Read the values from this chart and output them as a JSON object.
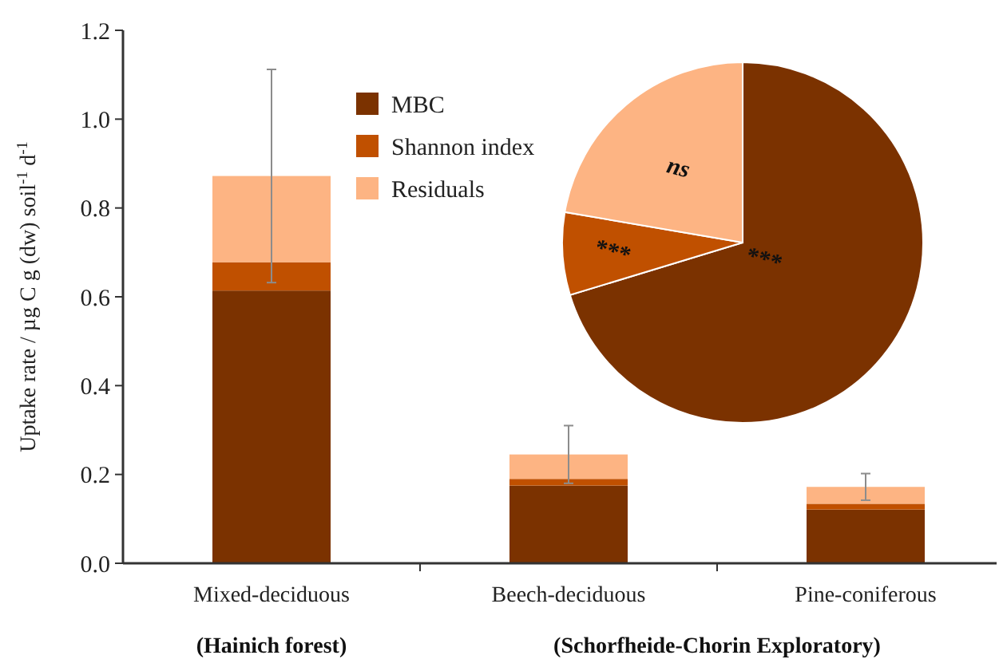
{
  "chart_data": [
    {
      "type": "bar",
      "stacked": true,
      "ylabel": "Uptake rate / µg C g (dw) soil$^{-1}$ d$^{-1}$",
      "categories": [
        "Mixed-deciduous",
        "Beech-deciduous",
        "Pine-coniferous"
      ],
      "series": [
        {
          "name": "MBC",
          "color": "#7b3200",
          "values": [
            0.614,
            0.175,
            0.121
          ]
        },
        {
          "name": "Shannon index",
          "color": "#c05000",
          "values": [
            0.064,
            0.015,
            0.013
          ]
        },
        {
          "name": "Residuals",
          "color": "#fdb483",
          "values": [
            0.194,
            0.055,
            0.038
          ],
          "errors": [
            0.24,
            0.065,
            0.03
          ]
        }
      ],
      "ylim": [
        0,
        1.2
      ],
      "yticks": [
        {
          "value": 0,
          "label": "0.0"
        },
        {
          "value": 0.2,
          "label": "0.2"
        },
        {
          "value": 0.4,
          "label": "0.4"
        },
        {
          "value": 0.6,
          "label": "0.6"
        },
        {
          "value": 0.8,
          "label": "0.8"
        },
        {
          "value": 1,
          "label": "1.0"
        },
        {
          "value": 1.2,
          "label": "1.2"
        }
      ],
      "grid": false,
      "legend": "top",
      "annotations": [
        "(Hainich forest)",
        "(Schorfheide-Chorin Exploratory)"
      ]
    },
    {
      "type": "pie",
      "categories": [
        null,
        null,
        null
      ],
      "values": [
        70.3,
        7.4,
        22.3
      ],
      "colors": [
        "#7b3200",
        "#c05000",
        "#fdb483"
      ],
      "value_labels": [
        "***",
        "***",
        "ns"
      ]
    }
  ]
}
